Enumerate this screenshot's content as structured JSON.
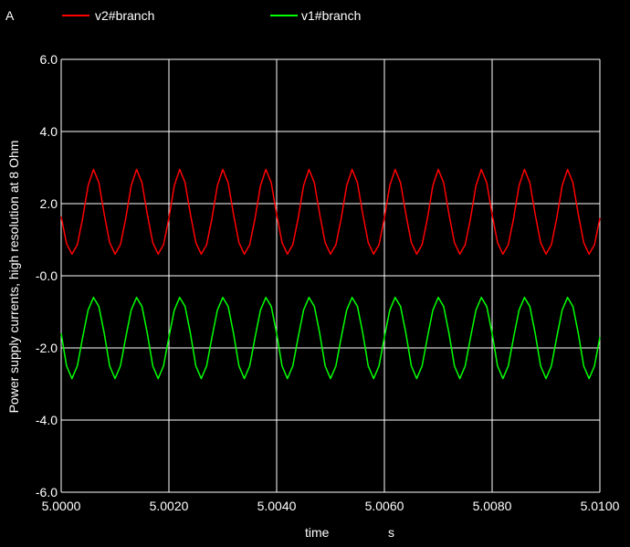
{
  "chart_data": {
    "type": "line",
    "unit_label": "A",
    "title": "",
    "xlabel": "time",
    "xunit": "s",
    "ylabel": "Power supply currents, high resolution at 8 Ohm",
    "xlim": [
      5.0,
      5.01
    ],
    "ylim": [
      -6.0,
      6.0
    ],
    "grid": true,
    "legend_position": "top",
    "x_ticks": [
      "5.0000",
      "5.0020",
      "5.0040",
      "5.0060",
      "5.0080",
      "5.0100"
    ],
    "y_ticks": [
      "6.0",
      "4.0",
      "2.0",
      "-0.0",
      "-2.0",
      "-4.0",
      "-6.0"
    ],
    "series": [
      {
        "name": "v2#branch",
        "color": "#ff0000",
        "x": [
          5.0,
          5.0001,
          5.0002,
          5.0003,
          5.0004,
          5.0005,
          5.0006,
          5.0007,
          5.0008,
          5.0009,
          5.001,
          5.0011,
          5.0012,
          5.0013,
          5.0014,
          5.0015,
          5.0016,
          5.0017,
          5.0018,
          5.0019,
          5.002,
          5.0021,
          5.0022,
          5.0023,
          5.0024,
          5.0025,
          5.0026,
          5.0027,
          5.0028,
          5.0029,
          5.003,
          5.0031,
          5.0032,
          5.0033,
          5.0034,
          5.0035,
          5.0036,
          5.0037,
          5.0038,
          5.0039,
          5.004,
          5.0041,
          5.0042,
          5.0043,
          5.0044,
          5.0045,
          5.0046,
          5.0047,
          5.0048,
          5.0049,
          5.005,
          5.0051,
          5.0052,
          5.0053,
          5.0054,
          5.0055,
          5.0056,
          5.0057,
          5.0058,
          5.0059,
          5.006,
          5.0061,
          5.0062,
          5.0063,
          5.0064,
          5.0065,
          5.0066,
          5.0067,
          5.0068,
          5.0069,
          5.007,
          5.0071,
          5.0072,
          5.0073,
          5.0074,
          5.0075,
          5.0076,
          5.0077,
          5.0078,
          5.0079,
          5.008,
          5.0081,
          5.0082,
          5.0083,
          5.0084,
          5.0085,
          5.0086,
          5.0087,
          5.0088,
          5.0089,
          5.009,
          5.0091,
          5.0092,
          5.0093,
          5.0094,
          5.0095,
          5.0096,
          5.0097,
          5.0098,
          5.0099,
          5.01
        ],
        "y": [
          1.64,
          0.89,
          0.6,
          0.86,
          1.6,
          2.5,
          2.95,
          2.58,
          1.7,
          0.92,
          0.6,
          0.86,
          1.6,
          2.5,
          2.95,
          2.58,
          1.7,
          0.92,
          0.6,
          0.86,
          1.6,
          2.5,
          2.95,
          2.58,
          1.7,
          0.92,
          0.6,
          0.86,
          1.6,
          2.5,
          2.95,
          2.58,
          1.7,
          0.92,
          0.6,
          0.86,
          1.6,
          2.5,
          2.95,
          2.58,
          1.7,
          0.92,
          0.6,
          0.86,
          1.6,
          2.5,
          2.95,
          2.58,
          1.7,
          0.92,
          0.6,
          0.86,
          1.6,
          2.5,
          2.95,
          2.58,
          1.7,
          0.92,
          0.6,
          0.86,
          1.6,
          2.5,
          2.95,
          2.58,
          1.7,
          0.92,
          0.6,
          0.86,
          1.6,
          2.5,
          2.95,
          2.58,
          1.7,
          0.92,
          0.6,
          0.86,
          1.6,
          2.5,
          2.95,
          2.58,
          1.7,
          0.92,
          0.6,
          0.86,
          1.6,
          2.5,
          2.95,
          2.58,
          1.7,
          0.92,
          0.6,
          0.86,
          1.6,
          2.5,
          2.95,
          2.58,
          1.7,
          0.92,
          0.6,
          0.86,
          1.6
        ]
      },
      {
        "name": "v1#branch",
        "color": "#00ff00",
        "x": [
          5.0,
          5.0001,
          5.0002,
          5.0003,
          5.0004,
          5.0005,
          5.0006,
          5.0007,
          5.0008,
          5.0009,
          5.001,
          5.0011,
          5.0012,
          5.0013,
          5.0014,
          5.0015,
          5.0016,
          5.0017,
          5.0018,
          5.0019,
          5.002,
          5.0021,
          5.0022,
          5.0023,
          5.0024,
          5.0025,
          5.0026,
          5.0027,
          5.0028,
          5.0029,
          5.003,
          5.0031,
          5.0032,
          5.0033,
          5.0034,
          5.0035,
          5.0036,
          5.0037,
          5.0038,
          5.0039,
          5.004,
          5.0041,
          5.0042,
          5.0043,
          5.0044,
          5.0045,
          5.0046,
          5.0047,
          5.0048,
          5.0049,
          5.005,
          5.0051,
          5.0052,
          5.0053,
          5.0054,
          5.0055,
          5.0056,
          5.0057,
          5.0058,
          5.0059,
          5.006,
          5.0061,
          5.0062,
          5.0063,
          5.0064,
          5.0065,
          5.0066,
          5.0067,
          5.0068,
          5.0069,
          5.007,
          5.0071,
          5.0072,
          5.0073,
          5.0074,
          5.0075,
          5.0076,
          5.0077,
          5.0078,
          5.0079,
          5.008,
          5.0081,
          5.0082,
          5.0083,
          5.0084,
          5.0085,
          5.0086,
          5.0087,
          5.0088,
          5.0089,
          5.009,
          5.0091,
          5.0092,
          5.0093,
          5.0094,
          5.0095,
          5.0096,
          5.0097,
          5.0098,
          5.0099,
          5.01
        ],
        "y": [
          -1.6,
          -2.5,
          -2.85,
          -2.5,
          -1.7,
          -0.95,
          -0.6,
          -0.85,
          -1.6,
          -2.5,
          -2.85,
          -2.5,
          -1.7,
          -0.95,
          -0.6,
          -0.85,
          -1.6,
          -2.5,
          -2.85,
          -2.5,
          -1.7,
          -0.95,
          -0.6,
          -0.85,
          -1.6,
          -2.5,
          -2.85,
          -2.5,
          -1.7,
          -0.95,
          -0.6,
          -0.85,
          -1.6,
          -2.5,
          -2.85,
          -2.5,
          -1.7,
          -0.95,
          -0.6,
          -0.85,
          -1.6,
          -2.5,
          -2.85,
          -2.5,
          -1.7,
          -0.95,
          -0.6,
          -0.85,
          -1.6,
          -2.5,
          -2.85,
          -2.5,
          -1.7,
          -0.95,
          -0.6,
          -0.85,
          -1.6,
          -2.5,
          -2.85,
          -2.5,
          -1.7,
          -0.95,
          -0.6,
          -0.85,
          -1.6,
          -2.5,
          -2.85,
          -2.5,
          -1.7,
          -0.95,
          -0.6,
          -0.85,
          -1.6,
          -2.5,
          -2.85,
          -2.5,
          -1.7,
          -0.95,
          -0.6,
          -0.85,
          -1.6,
          -2.5,
          -2.85,
          -2.5,
          -1.7,
          -0.95,
          -0.6,
          -0.85,
          -1.6,
          -2.5,
          -2.85,
          -2.5,
          -1.7,
          -0.95,
          -0.6,
          -0.85,
          -1.6,
          -2.5,
          -2.85,
          -2.5,
          -1.7
        ]
      }
    ]
  }
}
